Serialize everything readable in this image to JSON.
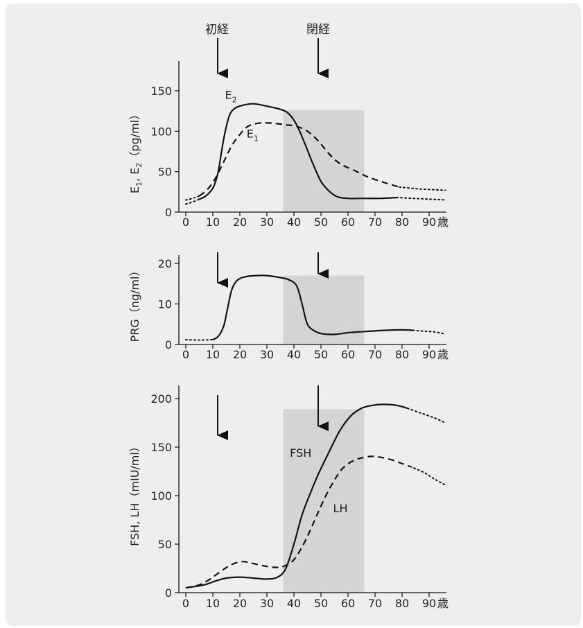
{
  "age_unit": "歳",
  "annotations": {
    "menarche": {
      "label": "初経",
      "age": 12
    },
    "menopause": {
      "label": "閉経",
      "age": 50
    }
  },
  "shaded_age_range": [
    36,
    66
  ],
  "chart_data": [
    {
      "type": "line",
      "id": "estrogen",
      "ylabel": "E1, E2（pg/ml）",
      "ylabel_parts": {
        "base1": "E",
        "sub1": "1",
        "sep": ", E",
        "sub2": "2",
        "unit": "（pg/ml）"
      },
      "xlim": [
        0,
        96
      ],
      "xticks": [
        0,
        10,
        20,
        30,
        40,
        50,
        60,
        70,
        80,
        90
      ],
      "ylim": [
        0,
        180
      ],
      "yticks": [
        0,
        50,
        100,
        150
      ],
      "shade_top": 126,
      "grid": false,
      "series": [
        {
          "name": "E2",
          "name_parts": {
            "base": "E",
            "sub": "2"
          },
          "style": "solid",
          "label_at": [
            14.5,
            140
          ],
          "points": [
            [
              5,
              16
            ],
            [
              7,
              19
            ],
            [
              9,
              25
            ],
            [
              10.5,
              33
            ],
            [
              12,
              50
            ],
            [
              14,
              90
            ],
            [
              16,
              118
            ],
            [
              18,
              128
            ],
            [
              21,
              132
            ],
            [
              25,
              134
            ],
            [
              30,
              131
            ],
            [
              35,
              127
            ],
            [
              38,
              122
            ],
            [
              41,
              108
            ],
            [
              44,
              85
            ],
            [
              47,
              60
            ],
            [
              50,
              38
            ],
            [
              53,
              26
            ],
            [
              56,
              19
            ],
            [
              60,
              17
            ],
            [
              66,
              17
            ],
            [
              72,
              17
            ],
            [
              78,
              18
            ]
          ],
          "tail_dotted": [
            [
              78,
              18
            ],
            [
              84,
              17
            ],
            [
              90,
              16
            ],
            [
              96,
              15
            ]
          ]
        },
        {
          "name": "E1",
          "name_parts": {
            "base": "E",
            "sub": "1"
          },
          "style": "dashed",
          "label_at": [
            22.5,
            92
          ],
          "points": [
            [
              5,
              20
            ],
            [
              8,
              28
            ],
            [
              11,
              42
            ],
            [
              14,
              62
            ],
            [
              17,
              82
            ],
            [
              20,
              96
            ],
            [
              23,
              106
            ],
            [
              27,
              110
            ],
            [
              32,
              110
            ],
            [
              37,
              108
            ],
            [
              41,
              106
            ],
            [
              45,
              100
            ],
            [
              49,
              88
            ],
            [
              53,
              72
            ],
            [
              57,
              60
            ],
            [
              62,
              52
            ],
            [
              67,
              44
            ],
            [
              73,
              37
            ],
            [
              79,
              31
            ]
          ],
          "tail_dotted": [
            [
              79,
              31
            ],
            [
              85,
              29
            ],
            [
              90,
              28
            ],
            [
              96,
              27
            ]
          ]
        }
      ]
    },
    {
      "type": "line",
      "id": "progesterone",
      "ylabel": "PRG（ng/ml）",
      "ylabel_parts": {
        "base": "PRG",
        "unit": "（ng/ml）"
      },
      "xlim": [
        0,
        96
      ],
      "xticks": [
        0,
        10,
        20,
        30,
        40,
        50,
        60,
        70,
        80,
        90
      ],
      "ylim": [
        0,
        22
      ],
      "yticks": [
        0,
        10,
        20
      ],
      "shade_top": 17,
      "grid": false,
      "series": [
        {
          "name": "PRG",
          "style": "solid",
          "points": [
            [
              10,
              1.2
            ],
            [
              12,
              2
            ],
            [
              14,
              4.5
            ],
            [
              15.5,
              9
            ],
            [
              17,
              13.5
            ],
            [
              19,
              15.8
            ],
            [
              22,
              16.7
            ],
            [
              26,
              17
            ],
            [
              30,
              17
            ],
            [
              35,
              16.5
            ],
            [
              38,
              16
            ],
            [
              41,
              14.5
            ],
            [
              43,
              10
            ],
            [
              45,
              5
            ],
            [
              48,
              3.2
            ],
            [
              51,
              2.6
            ],
            [
              55,
              2.5
            ],
            [
              60,
              2.9
            ],
            [
              66,
              3.2
            ],
            [
              74,
              3.5
            ],
            [
              80,
              3.6
            ],
            [
              84,
              3.5
            ]
          ],
          "tail_dotted": [
            [
              84,
              3.5
            ],
            [
              88,
              3.3
            ],
            [
              92,
              3.1
            ],
            [
              96,
              2.6
            ]
          ],
          "head_dotted": [
            [
              0,
              1.2
            ],
            [
              5,
              1.1
            ],
            [
              10,
              1.2
            ]
          ]
        }
      ]
    },
    {
      "type": "line",
      "id": "gonadotropins",
      "ylabel": "FSH, LH（mIU/ml）",
      "ylabel_parts": {
        "base": "FSH, LH",
        "unit": "（mIU/ml）"
      },
      "xlim": [
        0,
        96
      ],
      "xticks": [
        0,
        10,
        20,
        30,
        40,
        50,
        60,
        70,
        80,
        90
      ],
      "ylim": [
        0,
        212
      ],
      "yticks": [
        0,
        50,
        100,
        150,
        200
      ],
      "shade_top": 189,
      "grid": false,
      "series": [
        {
          "name": "FSH",
          "style": "solid",
          "label_at": [
            38.5,
            140
          ],
          "points": [
            [
              0,
              5
            ],
            [
              5,
              7
            ],
            [
              8,
              9
            ],
            [
              11,
              12
            ],
            [
              15,
              15
            ],
            [
              20,
              16
            ],
            [
              25,
              15
            ],
            [
              30,
              14
            ],
            [
              34,
              16
            ],
            [
              37,
              25
            ],
            [
              40,
              50
            ],
            [
              43,
              80
            ],
            [
              46,
              102
            ],
            [
              49,
              122
            ],
            [
              53,
              145
            ],
            [
              57,
              167
            ],
            [
              61,
              182
            ],
            [
              65,
              190
            ],
            [
              69,
              193
            ],
            [
              73,
              194
            ],
            [
              78,
              193
            ],
            [
              82,
              190
            ]
          ],
          "tail_dotted": [
            [
              82,
              190
            ],
            [
              87,
              185
            ],
            [
              92,
              180
            ],
            [
              96,
              175
            ]
          ]
        },
        {
          "name": "LH",
          "style": "dashed",
          "label_at": [
            54.5,
            83
          ],
          "points": [
            [
              0,
              5
            ],
            [
              5,
              8
            ],
            [
              9,
              14
            ],
            [
              13,
              22
            ],
            [
              17,
              29
            ],
            [
              21,
              32
            ],
            [
              25,
              30
            ],
            [
              30,
              27
            ],
            [
              34,
              26
            ],
            [
              37,
              28
            ],
            [
              40,
              34
            ],
            [
              43,
              47
            ],
            [
              46,
              64
            ],
            [
              49,
              83
            ],
            [
              52,
              101
            ],
            [
              55,
              116
            ],
            [
              58,
              128
            ],
            [
              62,
              136
            ],
            [
              67,
              140
            ],
            [
              71,
              140
            ],
            [
              76,
              137
            ],
            [
              80,
              133
            ],
            [
              83,
              130
            ]
          ],
          "tail_dotted": [
            [
              83,
              130
            ],
            [
              88,
              124
            ],
            [
              92,
              117
            ],
            [
              96,
              111
            ]
          ]
        }
      ]
    }
  ]
}
